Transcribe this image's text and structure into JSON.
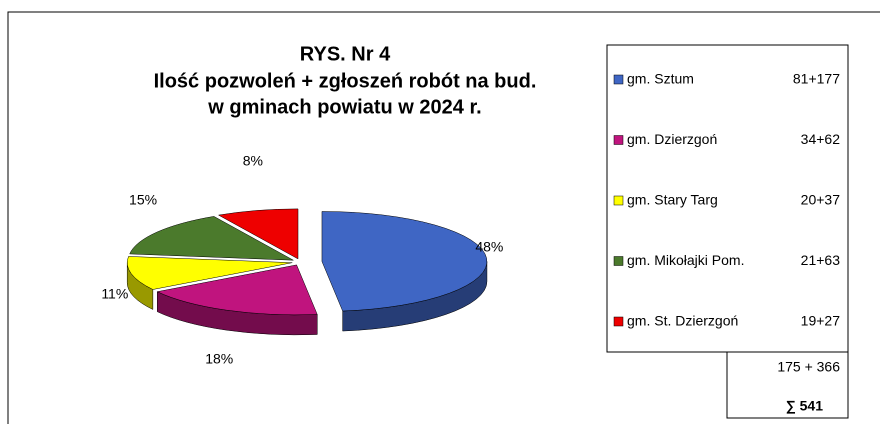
{
  "chart_data": {
    "type": "pie",
    "title": "RYS.  Nr 4",
    "subtitle": [
      "Ilość pozwoleń + zgłoszeń robót na bud.",
      "w gminach powiatu  w 2024 r."
    ],
    "categories": [
      "gm. Sztum",
      "gm. Dzierzgoń",
      "gm. Stary Targ",
      "gm. Mikołajki Pom.",
      "gm. St. Dzierzgoń"
    ],
    "legend_details": [
      "81+177",
      "34+62",
      "20+37",
      "21+63",
      "19+27"
    ],
    "values": [
      48,
      18,
      11,
      15,
      8
    ],
    "value_labels": [
      "48%",
      "18%",
      "11%",
      "15%",
      "8%"
    ],
    "colors": [
      "#3f66c4",
      "#c0147e",
      "#ffff00",
      "#4b7a2c",
      "#ee0000"
    ],
    "totals": [
      "175 + 366",
      "∑ 541"
    ]
  }
}
